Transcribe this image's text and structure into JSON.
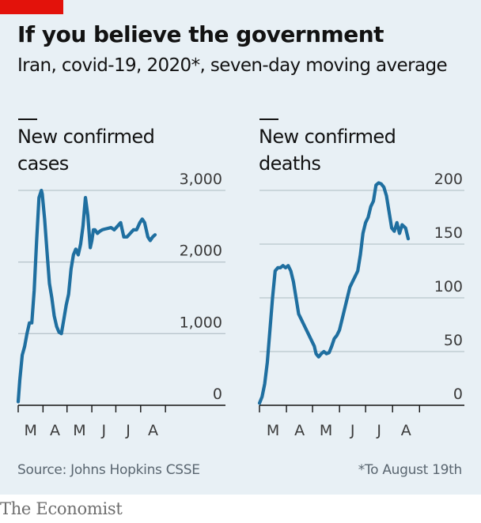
{
  "header": {
    "title": "If you believe the government",
    "subtitle": "Iran, covid-19, 2020*, seven-day moving average"
  },
  "footer": {
    "source": "Source: Johns Hopkins CSSE",
    "note": "*To August 19th",
    "brand": "The Economist"
  },
  "colors": {
    "line": "#1f6fa0",
    "grid": "#b9c5cc",
    "background": "#e8f0f5",
    "accent": "#e3120b"
  },
  "chart_data": [
    {
      "type": "line",
      "title": "New confirmed cases",
      "title_lines": [
        "New confirmed",
        "cases"
      ],
      "x_ticks": [
        "M",
        "A",
        "M",
        "J",
        "J",
        "A"
      ],
      "ylim": [
        0,
        3000
      ],
      "y_ticks": [
        0,
        1000,
        2000,
        3000
      ],
      "y_tick_labels": [
        "0",
        "1,000",
        "2,000",
        "3,000"
      ],
      "series": [
        {
          "x": [
            "2020-03-01",
            "2020-03-03",
            "2020-03-06",
            "2020-03-09",
            "2020-03-12",
            "2020-03-15",
            "2020-03-18",
            "2020-03-21",
            "2020-03-24",
            "2020-03-27",
            "2020-03-30",
            "2020-03-31",
            "2020-04-03",
            "2020-04-06",
            "2020-04-09",
            "2020-04-12",
            "2020-04-15",
            "2020-04-18",
            "2020-04-21",
            "2020-04-24",
            "2020-04-27",
            "2020-04-30",
            "2020-05-03",
            "2020-05-06",
            "2020-05-09",
            "2020-05-12",
            "2020-05-15",
            "2020-05-18",
            "2020-05-21",
            "2020-05-24",
            "2020-05-27",
            "2020-05-30",
            "2020-06-01",
            "2020-06-03",
            "2020-06-05",
            "2020-06-08",
            "2020-06-11",
            "2020-06-14",
            "2020-06-17",
            "2020-06-21",
            "2020-06-25",
            "2020-06-29",
            "2020-07-03",
            "2020-07-07",
            "2020-07-11",
            "2020-07-15",
            "2020-07-19",
            "2020-07-23",
            "2020-07-27",
            "2020-07-31",
            "2020-08-03",
            "2020-08-06",
            "2020-08-10",
            "2020-08-13",
            "2020-08-16",
            "2020-08-19"
          ],
          "values": [
            50,
            350,
            700,
            820,
            1000,
            1150,
            1150,
            1600,
            2300,
            2900,
            3000,
            2950,
            2600,
            2150,
            1700,
            1500,
            1250,
            1100,
            1020,
            1000,
            1200,
            1400,
            1550,
            1900,
            2100,
            2180,
            2100,
            2250,
            2500,
            2900,
            2650,
            2200,
            2300,
            2450,
            2450,
            2400,
            2430,
            2450,
            2460,
            2470,
            2480,
            2450,
            2500,
            2550,
            2350,
            2350,
            2400,
            2450,
            2450,
            2550,
            2600,
            2550,
            2350,
            2300,
            2350,
            2380
          ]
        }
      ]
    },
    {
      "type": "line",
      "title": "New confirmed deaths",
      "title_lines": [
        "New confirmed",
        "deaths"
      ],
      "x_ticks": [
        "M",
        "A",
        "M",
        "J",
        "J",
        "A"
      ],
      "ylim": [
        0,
        200
      ],
      "y_ticks": [
        0,
        50,
        100,
        150,
        200
      ],
      "y_tick_labels": [
        "0",
        "50",
        "100",
        "150",
        "200"
      ],
      "series": [
        {
          "x": [
            "2020-03-01",
            "2020-03-04",
            "2020-03-07",
            "2020-03-10",
            "2020-03-13",
            "2020-03-16",
            "2020-03-19",
            "2020-03-22",
            "2020-03-25",
            "2020-03-28",
            "2020-03-31",
            "2020-04-03",
            "2020-04-06",
            "2020-04-09",
            "2020-04-12",
            "2020-04-15",
            "2020-04-18",
            "2020-04-21",
            "2020-04-24",
            "2020-04-27",
            "2020-04-30",
            "2020-05-03",
            "2020-05-05",
            "2020-05-08",
            "2020-05-11",
            "2020-05-14",
            "2020-05-17",
            "2020-05-20",
            "2020-05-23",
            "2020-05-26",
            "2020-05-29",
            "2020-06-01",
            "2020-06-04",
            "2020-06-07",
            "2020-06-10",
            "2020-06-13",
            "2020-06-16",
            "2020-06-19",
            "2020-06-22",
            "2020-06-25",
            "2020-06-28",
            "2020-07-01",
            "2020-07-04",
            "2020-07-07",
            "2020-07-10",
            "2020-07-13",
            "2020-07-16",
            "2020-07-19",
            "2020-07-22",
            "2020-07-25",
            "2020-07-28",
            "2020-07-31",
            "2020-08-03",
            "2020-08-06",
            "2020-08-09",
            "2020-08-12",
            "2020-08-16",
            "2020-08-19"
          ],
          "values": [
            2,
            8,
            20,
            40,
            70,
            100,
            125,
            128,
            128,
            130,
            128,
            130,
            125,
            115,
            100,
            85,
            80,
            75,
            70,
            65,
            60,
            55,
            48,
            45,
            48,
            50,
            48,
            49,
            55,
            62,
            65,
            70,
            80,
            90,
            100,
            110,
            115,
            120,
            125,
            140,
            160,
            170,
            175,
            185,
            190,
            205,
            207,
            206,
            203,
            195,
            180,
            165,
            162,
            170,
            160,
            168,
            165,
            155
          ]
        }
      ]
    }
  ]
}
